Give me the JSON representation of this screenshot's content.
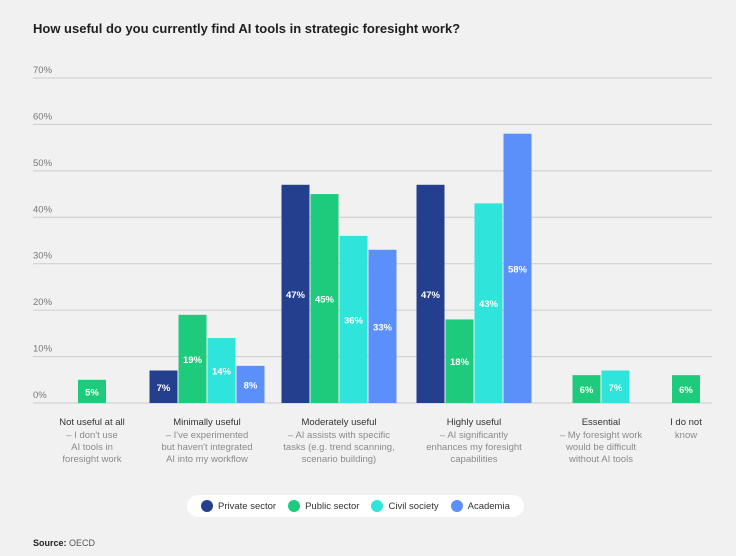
{
  "title": "How useful do you currently find AI tools in strategic foresight work?",
  "source": {
    "label": "Source:",
    "text": "OECD"
  },
  "colors": {
    "private": "#253f8f",
    "public": "#1ecb7d",
    "civil": "#2fe4da",
    "academia": "#5b8ff9",
    "grid": "#cccccc",
    "axis_text": "#777777",
    "category_text": "#333333",
    "desc_text": "#8a8a8a"
  },
  "chart_data": {
    "type": "bar",
    "title": "How useful do you currently find AI tools in strategic foresight work?",
    "xlabel": "",
    "ylabel": "",
    "ylim": [
      0,
      70
    ],
    "yticks": [
      "0%",
      "10%",
      "20%",
      "30%",
      "40%",
      "50%",
      "60%",
      "70%"
    ],
    "grid": true,
    "legend_position": "bottom-center",
    "categories": [
      {
        "name": "Not useful at all",
        "desc": [
          "– I don't use",
          "AI tools in",
          "foresight work"
        ]
      },
      {
        "name": "Minimally useful",
        "desc": [
          "– I've experimented",
          "but haven't integrated",
          "AI into my workflow"
        ]
      },
      {
        "name": "Moderately useful",
        "desc": [
          "– AI assists with specific",
          "tasks (e.g. trend scanning,",
          "scenario building)"
        ]
      },
      {
        "name": "Highly useful",
        "desc": [
          "– AI significantly",
          "enhances my foresight",
          "capabilities"
        ]
      },
      {
        "name": "Essential",
        "desc": [
          "– My foresight work",
          "would be difficult",
          "without AI tools"
        ]
      },
      {
        "name": "I do not",
        "desc": [
          "know"
        ]
      }
    ],
    "series": [
      {
        "name": "Private sector",
        "key": "private",
        "values": [
          null,
          7,
          47,
          47,
          null,
          null
        ]
      },
      {
        "name": "Public sector",
        "key": "public",
        "values": [
          5,
          19,
          45,
          18,
          6,
          6
        ]
      },
      {
        "name": "Civil society",
        "key": "civil",
        "values": [
          null,
          14,
          36,
          43,
          7,
          null
        ]
      },
      {
        "name": "Academia",
        "key": "academia",
        "values": [
          null,
          8,
          33,
          58,
          null,
          null
        ]
      }
    ]
  }
}
